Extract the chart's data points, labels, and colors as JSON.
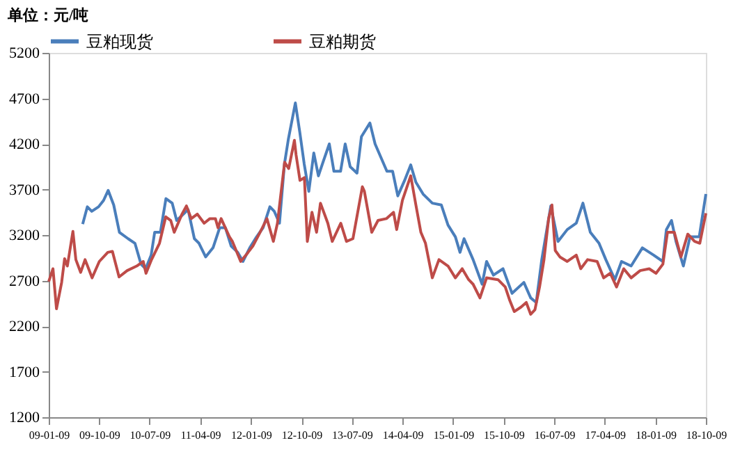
{
  "chart_data": {
    "type": "line",
    "ylabel": "单位：元/吨",
    "xlim": [
      "2009-01-09",
      "2018-10-09"
    ],
    "xticks": [
      {
        "value": "2009-01-09",
        "label": "09-01-09"
      },
      {
        "value": "2009-10-09",
        "label": "09-10-09"
      },
      {
        "value": "2010-07-09",
        "label": "10-07-09"
      },
      {
        "value": "2011-04-09",
        "label": "11-04-09"
      },
      {
        "value": "2012-01-09",
        "label": "12-01-09"
      },
      {
        "value": "2012-10-09",
        "label": "12-10-09"
      },
      {
        "value": "2013-07-09",
        "label": "13-07-09"
      },
      {
        "value": "2014-04-09",
        "label": "14-04-09"
      },
      {
        "value": "2015-01-09",
        "label": "15-01-09"
      },
      {
        "value": "2015-10-09",
        "label": "15-10-09"
      },
      {
        "value": "2016-07-09",
        "label": "16-07-09"
      },
      {
        "value": "2017-04-09",
        "label": "17-04-09"
      },
      {
        "value": "2018-01-09",
        "label": "18-01-09"
      },
      {
        "value": "2018-10-09",
        "label": "18-10-09"
      }
    ],
    "ylim": [
      1200,
      5200
    ],
    "yticks": [
      1200,
      1700,
      2200,
      2700,
      3200,
      3700,
      4200,
      4700,
      5200
    ],
    "grid": false,
    "legend": "top",
    "marker": "none",
    "line_style": "solid",
    "series": [
      {
        "name": "豆粕现货",
        "color": "#4a7ebb",
        "x": [
          "2009-07-12",
          "2009-08-06",
          "2009-08-30",
          "2009-10-06",
          "2009-11-02",
          "2009-11-27",
          "2009-12-27",
          "2010-01-27",
          "2010-03-15",
          "2010-04-21",
          "2010-05-24",
          "2010-06-18",
          "2010-07-18",
          "2010-08-06",
          "2010-09-06",
          "2010-10-06",
          "2010-11-09",
          "2010-12-03",
          "2011-01-09",
          "2011-02-03",
          "2011-03-09",
          "2011-04-03",
          "2011-05-09",
          "2011-06-18",
          "2011-07-24",
          "2011-08-24",
          "2011-09-24",
          "2011-10-30",
          "2011-11-27",
          "2012-01-03",
          "2012-02-09",
          "2012-03-15",
          "2012-04-21",
          "2012-05-15",
          "2012-06-12",
          "2012-07-09",
          "2012-07-30",
          "2012-09-06",
          "2012-09-30",
          "2012-10-24",
          "2012-11-18",
          "2012-12-15",
          "2013-01-09",
          "2013-02-03",
          "2013-03-09",
          "2013-04-03",
          "2013-05-09",
          "2013-06-03",
          "2013-06-30",
          "2013-08-06",
          "2013-08-30",
          "2013-10-15",
          "2013-11-12",
          "2014-01-15",
          "2014-02-15",
          "2014-03-15",
          "2014-04-21",
          "2014-05-24",
          "2014-06-21",
          "2014-07-30",
          "2014-09-18",
          "2014-11-06",
          "2014-12-12",
          "2015-01-21",
          "2015-02-15",
          "2015-03-09",
          "2015-04-27",
          "2015-06-15",
          "2015-07-09",
          "2015-08-15",
          "2015-10-06",
          "2015-11-24",
          "2016-01-27",
          "2016-03-04",
          "2016-04-03",
          "2016-05-03",
          "2016-06-21",
          "2016-07-30",
          "2016-09-18",
          "2016-11-06",
          "2016-12-12",
          "2017-01-21",
          "2017-03-09",
          "2017-04-15",
          "2017-06-03",
          "2017-07-09",
          "2017-08-30",
          "2017-10-30",
          "2017-12-30",
          "2018-02-18",
          "2018-03-09",
          "2018-04-06",
          "2018-04-30",
          "2018-06-09",
          "2018-07-15",
          "2018-09-03",
          "2018-10-09"
        ],
        "values": [
          3320,
          3510,
          3460,
          3510,
          3580,
          3690,
          3530,
          3230,
          3160,
          3110,
          2880,
          2830,
          2980,
          3230,
          3230,
          3600,
          3550,
          3360,
          3430,
          3480,
          3160,
          3110,
          2960,
          3060,
          3280,
          3280,
          3080,
          3010,
          2910,
          3060,
          3180,
          3280,
          3510,
          3460,
          3330,
          3980,
          4250,
          4650,
          4330,
          3980,
          3680,
          4100,
          3850,
          4000,
          4200,
          3900,
          3900,
          4200,
          3950,
          3880,
          4280,
          4430,
          4200,
          3900,
          3900,
          3630,
          3800,
          3970,
          3780,
          3650,
          3550,
          3530,
          3310,
          3180,
          3010,
          3160,
          2930,
          2660,
          2910,
          2760,
          2830,
          2560,
          2680,
          2510,
          2460,
          2930,
          3520,
          3130,
          3260,
          3330,
          3550,
          3230,
          3110,
          2930,
          2710,
          2910,
          2860,
          3060,
          2980,
          2910,
          3260,
          3360,
          3130,
          2860,
          3180,
          3180,
          3650
        ]
      },
      {
        "name": "豆粕期货",
        "color": "#be4b48",
        "x": [
          "2009-01-09",
          "2009-02-01",
          "2009-02-20",
          "2009-03-20",
          "2009-04-05",
          "2009-04-20",
          "2009-05-20",
          "2009-06-05",
          "2009-07-01",
          "2009-07-25",
          "2009-09-01",
          "2009-10-10",
          "2009-11-25",
          "2009-12-20",
          "2010-01-25",
          "2010-03-10",
          "2010-05-01",
          "2010-06-05",
          "2010-06-20",
          "2010-07-20",
          "2010-09-01",
          "2010-10-05",
          "2010-11-01",
          "2010-11-20",
          "2011-01-01",
          "2011-01-25",
          "2011-02-20",
          "2011-03-25",
          "2011-05-01",
          "2011-06-01",
          "2011-07-01",
          "2011-07-15",
          "2011-08-01",
          "2011-09-15",
          "2011-10-01",
          "2011-11-15",
          "2011-12-25",
          "2012-01-20",
          "2012-02-28",
          "2012-04-05",
          "2012-05-10",
          "2012-06-01",
          "2012-07-10",
          "2012-08-01",
          "2012-09-01",
          "2012-09-10",
          "2012-10-01",
          "2012-10-25",
          "2012-11-10",
          "2012-12-05",
          "2012-12-30",
          "2013-01-20",
          "2013-03-01",
          "2013-03-25",
          "2013-05-10",
          "2013-06-10",
          "2013-07-15",
          "2013-09-04",
          "2013-09-15",
          "2013-10-25",
          "2013-11-28",
          "2014-01-12",
          "2014-02-20",
          "2014-03-09",
          "2014-04-09",
          "2014-05-24",
          "2014-06-21",
          "2014-07-18",
          "2014-08-12",
          "2014-09-18",
          "2014-10-24",
          "2014-12-12",
          "2015-01-21",
          "2015-02-27",
          "2015-04-03",
          "2015-04-27",
          "2015-06-03",
          "2015-07-09",
          "2015-09-09",
          "2015-10-18",
          "2015-11-12",
          "2015-12-06",
          "2016-01-12",
          "2016-02-09",
          "2016-03-04",
          "2016-03-27",
          "2016-04-21",
          "2016-05-15",
          "2016-06-09",
          "2016-06-27",
          "2016-07-15",
          "2016-08-09",
          "2016-09-18",
          "2016-11-06",
          "2016-11-30",
          "2017-01-06",
          "2017-02-27",
          "2017-04-03",
          "2017-05-09",
          "2017-06-12",
          "2017-07-21",
          "2017-08-30",
          "2017-10-18",
          "2017-12-06",
          "2018-01-12",
          "2018-02-18",
          "2018-03-15",
          "2018-04-21",
          "2018-05-27",
          "2018-07-03",
          "2018-08-09",
          "2018-09-06",
          "2018-10-09"
        ],
        "values": [
          2690,
          2830,
          2390,
          2680,
          2940,
          2860,
          3240,
          2930,
          2790,
          2930,
          2730,
          2910,
          3010,
          3020,
          2740,
          2810,
          2860,
          2910,
          2780,
          2930,
          3110,
          3400,
          3360,
          3230,
          3430,
          3520,
          3380,
          3430,
          3330,
          3380,
          3380,
          3280,
          3380,
          3180,
          3130,
          2910,
          3010,
          3080,
          3230,
          3380,
          3130,
          3330,
          4000,
          3930,
          4240,
          4080,
          3800,
          3830,
          3130,
          3450,
          3230,
          3550,
          3330,
          3130,
          3330,
          3130,
          3160,
          3730,
          3680,
          3230,
          3360,
          3380,
          3450,
          3260,
          3580,
          3850,
          3530,
          3230,
          3110,
          2730,
          2930,
          2860,
          2730,
          2830,
          2710,
          2660,
          2510,
          2730,
          2710,
          2630,
          2480,
          2360,
          2410,
          2460,
          2330,
          2380,
          2630,
          2930,
          3380,
          3530,
          3030,
          2960,
          2910,
          2980,
          2830,
          2930,
          2910,
          2730,
          2780,
          2630,
          2830,
          2730,
          2810,
          2830,
          2780,
          2880,
          3230,
          3230,
          2960,
          3210,
          3130,
          3110,
          3440
        ]
      }
    ]
  }
}
